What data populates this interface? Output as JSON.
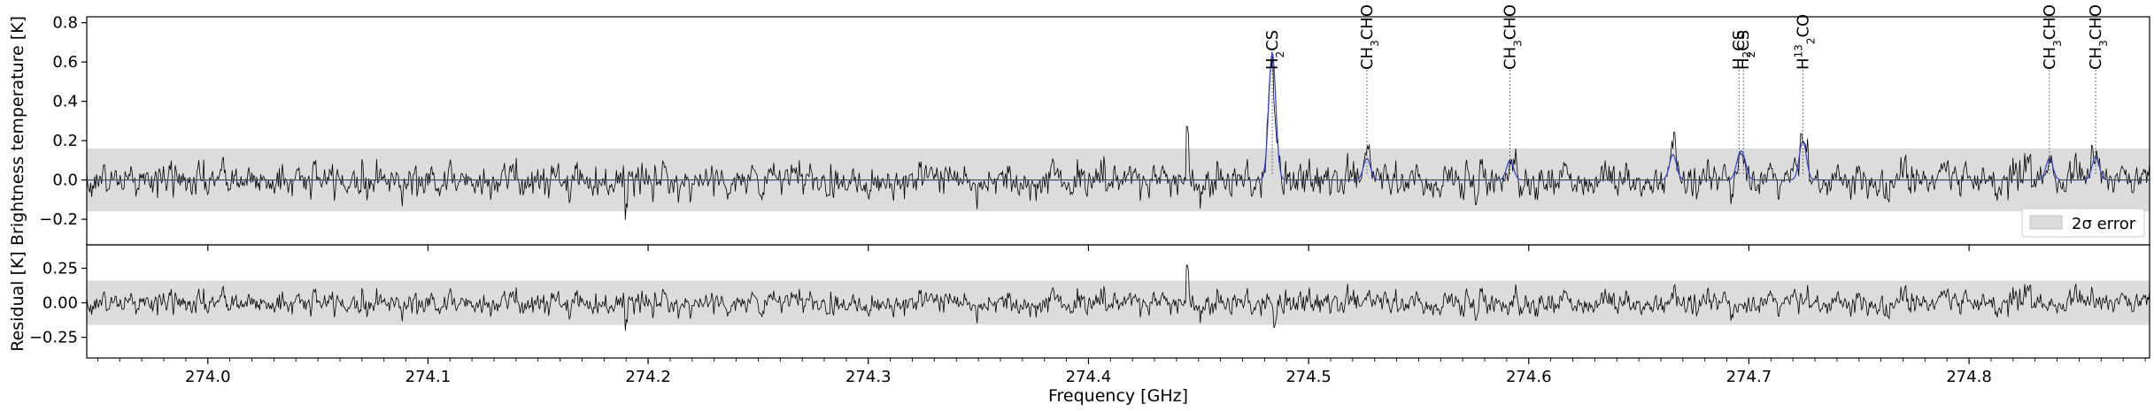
{
  "chart_data": [
    {
      "type": "line",
      "panel": "spectrum",
      "xlabel": "",
      "ylabel": "Brightness temperature [K]",
      "xlim": [
        273.945,
        274.882
      ],
      "ylim": [
        -0.33,
        0.83
      ],
      "yticks": [
        -0.2,
        0.0,
        0.2,
        0.4,
        0.6,
        0.8
      ],
      "ytick_labels": [
        "−0.2",
        "0.0",
        "0.2",
        "0.4",
        "0.6",
        "0.8"
      ],
      "grid": false,
      "noise_band": {
        "lower": -0.16,
        "upper": 0.16,
        "color": "#dcdcdc",
        "legend_label": "2σ error"
      },
      "legend_placement": "lower-right",
      "series": [
        {
          "role": "observed",
          "color": "#000000"
        },
        {
          "role": "model",
          "color": "#3344cc",
          "peaks": [
            {
              "x": 274.4835,
              "amp": 0.65,
              "width": 0.0016
            },
            {
              "x": 274.5265,
              "amp": 0.11,
              "width": 0.0016
            },
            {
              "x": 274.5915,
              "amp": 0.1,
              "width": 0.0016
            },
            {
              "x": 274.6655,
              "amp": 0.13,
              "width": 0.0016
            },
            {
              "x": 274.6955,
              "amp": 0.09,
              "width": 0.0016
            },
            {
              "x": 274.6975,
              "amp": 0.09,
              "width": 0.0016
            },
            {
              "x": 274.7245,
              "amp": 0.2,
              "width": 0.0016
            },
            {
              "x": 274.8365,
              "amp": 0.11,
              "width": 0.0016
            },
            {
              "x": 274.8575,
              "amp": 0.12,
              "width": 0.0016
            }
          ]
        }
      ],
      "annotations": [
        {
          "x": 274.4835,
          "base": "H",
          "sub": "2",
          "rest": "CS"
        },
        {
          "x": 274.5265,
          "base": "CH",
          "sub": "3",
          "rest": "CHO"
        },
        {
          "x": 274.5915,
          "base": "CH",
          "sub": "3",
          "rest": "CHO"
        },
        {
          "x": 274.6955,
          "base": "H",
          "sub": "2",
          "rest": "CS"
        },
        {
          "x": 274.6975,
          "base": "H",
          "sub": "2",
          "rest": "CS"
        },
        {
          "x": 274.7245,
          "base": "H",
          "sub": "2",
          "sup": "13",
          "rest": "CO"
        },
        {
          "x": 274.8365,
          "base": "CH",
          "sub": "3",
          "rest": "CHO"
        },
        {
          "x": 274.8575,
          "base": "CH",
          "sub": "3",
          "rest": "CHO"
        }
      ]
    },
    {
      "type": "line",
      "panel": "residual",
      "xlabel": "Frequency [GHz]",
      "ylabel": "Residual [K]",
      "xlim": [
        273.945,
        274.882
      ],
      "ylim": [
        -0.4,
        0.42
      ],
      "yticks": [
        -0.25,
        0.0,
        0.25
      ],
      "ytick_labels": [
        "−0.25",
        "0.00",
        "0.25"
      ],
      "xticks": [
        274.0,
        274.1,
        274.2,
        274.3,
        274.4,
        274.5,
        274.6,
        274.7,
        274.8
      ],
      "xtick_labels": [
        "274.0",
        "274.1",
        "274.2",
        "274.3",
        "274.4",
        "274.5",
        "274.6",
        "274.7",
        "274.8"
      ],
      "grid": false,
      "noise_band": {
        "lower": -0.16,
        "upper": 0.16,
        "color": "#dcdcdc"
      },
      "series": [
        {
          "role": "residual",
          "color": "#000000"
        }
      ]
    }
  ]
}
